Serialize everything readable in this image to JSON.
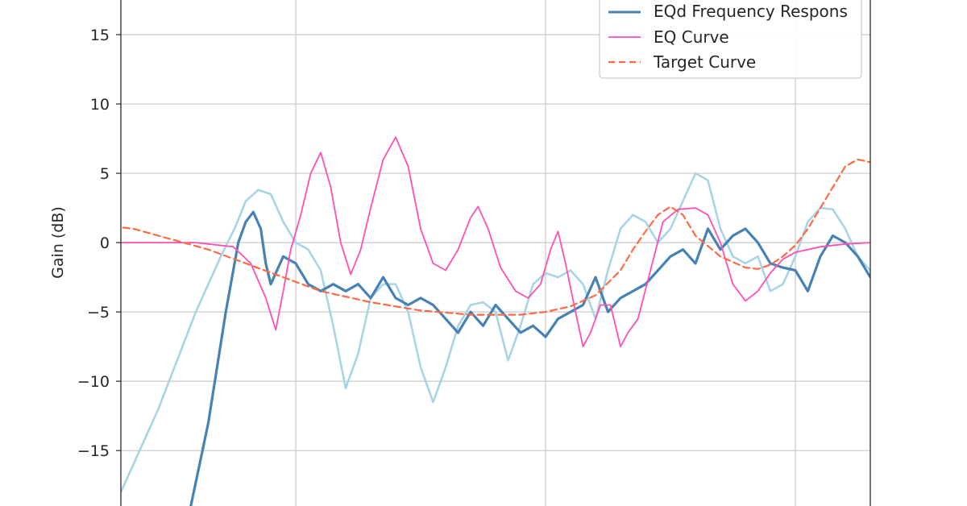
{
  "chart_data": {
    "type": "line",
    "title": "",
    "xlabel": "",
    "ylabel": "Gain (dB)",
    "x_scale": "log",
    "xlim_decades": [
      1.3,
      4.3
    ],
    "ylim": [
      -19,
      17.5
    ],
    "yticks": [
      15,
      10,
      5,
      0,
      -5,
      -10,
      -15
    ],
    "ytick_labels": [
      "15",
      "10",
      "5",
      "0",
      "−5",
      "−10",
      "−15"
    ],
    "grid": true,
    "legend": {
      "placement": "top-right",
      "entries": [
        {
          "label": "EQd Frequency Respons",
          "color": "#4682b4",
          "style": "solid"
        },
        {
          "label": "EQ Curve",
          "color": "#ff4fb6",
          "style": "solid"
        },
        {
          "label": "Target Curve",
          "color": "#ff6a45",
          "style": "dashed"
        }
      ]
    },
    "series": [
      {
        "name": "",
        "color": "#a8d4e6",
        "style": "solid",
        "points": [
          [
            1.0,
            -8
          ],
          [
            1.3,
            -18
          ],
          [
            1.45,
            -12
          ],
          [
            1.6,
            -5
          ],
          [
            1.7,
            -1
          ],
          [
            1.76,
            1.2
          ],
          [
            1.8,
            3
          ],
          [
            1.85,
            3.8
          ],
          [
            1.9,
            3.5
          ],
          [
            1.95,
            1.5
          ],
          [
            2.0,
            0
          ],
          [
            2.05,
            -0.5
          ],
          [
            2.1,
            -2
          ],
          [
            2.15,
            -6
          ],
          [
            2.2,
            -10.5
          ],
          [
            2.25,
            -8
          ],
          [
            2.3,
            -4
          ],
          [
            2.35,
            -3
          ],
          [
            2.4,
            -3
          ],
          [
            2.45,
            -5
          ],
          [
            2.5,
            -9
          ],
          [
            2.55,
            -11.5
          ],
          [
            2.6,
            -9
          ],
          [
            2.65,
            -6
          ],
          [
            2.7,
            -4.5
          ],
          [
            2.75,
            -4.3
          ],
          [
            2.8,
            -5
          ],
          [
            2.85,
            -8.5
          ],
          [
            2.9,
            -6
          ],
          [
            2.95,
            -3
          ],
          [
            3.0,
            -2.2
          ],
          [
            3.05,
            -2.5
          ],
          [
            3.1,
            -2
          ],
          [
            3.15,
            -3
          ],
          [
            3.2,
            -5.5
          ],
          [
            3.25,
            -2
          ],
          [
            3.3,
            1
          ],
          [
            3.35,
            2
          ],
          [
            3.4,
            1.5
          ],
          [
            3.45,
            0
          ],
          [
            3.5,
            1
          ],
          [
            3.55,
            3
          ],
          [
            3.6,
            5
          ],
          [
            3.65,
            4.5
          ],
          [
            3.7,
            1
          ],
          [
            3.75,
            -1
          ],
          [
            3.8,
            -1.5
          ],
          [
            3.85,
            -1
          ],
          [
            3.9,
            -3.5
          ],
          [
            3.95,
            -3
          ],
          [
            4.0,
            -1
          ],
          [
            4.05,
            1.5
          ],
          [
            4.1,
            2.5
          ],
          [
            4.15,
            2.4
          ],
          [
            4.2,
            1
          ],
          [
            4.25,
            -1
          ],
          [
            4.3,
            -2
          ],
          [
            4.35,
            -1.5
          ],
          [
            4.4,
            0
          ],
          [
            4.45,
            1.5
          ],
          [
            4.5,
            2
          ],
          [
            4.55,
            0
          ],
          [
            4.6,
            -2
          ],
          [
            4.65,
            -2.5
          ],
          [
            4.7,
            -3
          ]
        ]
      },
      {
        "name": "EQd Frequency Respons",
        "color": "#4682b4",
        "style": "solid",
        "points": [
          [
            1.58,
            -19
          ],
          [
            1.65,
            -13
          ],
          [
            1.72,
            -5
          ],
          [
            1.77,
            0
          ],
          [
            1.8,
            1.5
          ],
          [
            1.83,
            2.2
          ],
          [
            1.86,
            1
          ],
          [
            1.88,
            -1.5
          ],
          [
            1.9,
            -3
          ],
          [
            1.95,
            -1
          ],
          [
            2.0,
            -1.5
          ],
          [
            2.05,
            -3
          ],
          [
            2.1,
            -3.5
          ],
          [
            2.15,
            -3
          ],
          [
            2.2,
            -3.5
          ],
          [
            2.25,
            -3
          ],
          [
            2.3,
            -4
          ],
          [
            2.35,
            -2.5
          ],
          [
            2.4,
            -4
          ],
          [
            2.45,
            -4.5
          ],
          [
            2.5,
            -4
          ],
          [
            2.55,
            -4.5
          ],
          [
            2.6,
            -5.5
          ],
          [
            2.65,
            -6.5
          ],
          [
            2.7,
            -5
          ],
          [
            2.75,
            -6
          ],
          [
            2.8,
            -4.5
          ],
          [
            2.85,
            -5.5
          ],
          [
            2.9,
            -6.5
          ],
          [
            2.95,
            -6
          ],
          [
            3.0,
            -6.8
          ],
          [
            3.05,
            -5.5
          ],
          [
            3.1,
            -5
          ],
          [
            3.15,
            -4.5
          ],
          [
            3.2,
            -2.5
          ],
          [
            3.25,
            -5
          ],
          [
            3.3,
            -4
          ],
          [
            3.35,
            -3.5
          ],
          [
            3.4,
            -3
          ],
          [
            3.45,
            -2
          ],
          [
            3.5,
            -1
          ],
          [
            3.55,
            -0.5
          ],
          [
            3.6,
            -1.5
          ],
          [
            3.65,
            1
          ],
          [
            3.7,
            -0.5
          ],
          [
            3.75,
            0.5
          ],
          [
            3.8,
            1
          ],
          [
            3.85,
            0
          ],
          [
            3.9,
            -1.5
          ],
          [
            3.95,
            -1.8
          ],
          [
            4.0,
            -2
          ],
          [
            4.05,
            -3.5
          ],
          [
            4.1,
            -1
          ],
          [
            4.15,
            0.5
          ],
          [
            4.2,
            0
          ],
          [
            4.25,
            -1
          ],
          [
            4.3,
            -2.5
          ],
          [
            4.35,
            -1.5
          ],
          [
            4.4,
            1
          ],
          [
            4.45,
            1.5
          ],
          [
            4.5,
            0
          ],
          [
            4.55,
            -1
          ],
          [
            4.6,
            -2.5
          ],
          [
            4.65,
            -2.5
          ],
          [
            4.7,
            -3.5
          ],
          [
            4.75,
            -4
          ],
          [
            4.8,
            -5
          ],
          [
            4.85,
            -8
          ],
          [
            4.9,
            -12
          ],
          [
            4.95,
            -19
          ]
        ]
      },
      {
        "name": "EQ Curve",
        "color": "#ff4fb6",
        "style": "solid",
        "points": [
          [
            1.0,
            0
          ],
          [
            1.6,
            0
          ],
          [
            1.75,
            -0.3
          ],
          [
            1.82,
            -1.5
          ],
          [
            1.88,
            -4
          ],
          [
            1.92,
            -6.3
          ],
          [
            1.95,
            -3.5
          ],
          [
            1.98,
            -0.5
          ],
          [
            2.02,
            2
          ],
          [
            2.06,
            5
          ],
          [
            2.1,
            6.5
          ],
          [
            2.14,
            4
          ],
          [
            2.18,
            0
          ],
          [
            2.22,
            -2.3
          ],
          [
            2.26,
            -0.5
          ],
          [
            2.3,
            2.5
          ],
          [
            2.35,
            6
          ],
          [
            2.4,
            7.6
          ],
          [
            2.45,
            5.5
          ],
          [
            2.5,
            1
          ],
          [
            2.55,
            -1.5
          ],
          [
            2.6,
            -2
          ],
          [
            2.65,
            -0.5
          ],
          [
            2.7,
            1.8
          ],
          [
            2.73,
            2.6
          ],
          [
            2.77,
            1
          ],
          [
            2.82,
            -1.8
          ],
          [
            2.88,
            -3.5
          ],
          [
            2.93,
            -4
          ],
          [
            2.98,
            -3
          ],
          [
            3.02,
            -0.5
          ],
          [
            3.05,
            0.8
          ],
          [
            3.08,
            -1.5
          ],
          [
            3.12,
            -5
          ],
          [
            3.15,
            -7.5
          ],
          [
            3.18,
            -6.5
          ],
          [
            3.22,
            -4.5
          ],
          [
            3.26,
            -4.5
          ],
          [
            3.3,
            -7.5
          ],
          [
            3.33,
            -6.5
          ],
          [
            3.37,
            -5.5
          ],
          [
            3.42,
            -2
          ],
          [
            3.47,
            1.5
          ],
          [
            3.53,
            2.4
          ],
          [
            3.6,
            2.5
          ],
          [
            3.65,
            2
          ],
          [
            3.7,
            0
          ],
          [
            3.75,
            -3
          ],
          [
            3.8,
            -4.2
          ],
          [
            3.85,
            -3.5
          ],
          [
            3.9,
            -2.2
          ],
          [
            3.95,
            -1.2
          ],
          [
            4.0,
            -0.7
          ],
          [
            4.1,
            -0.3
          ],
          [
            4.2,
            -0.1
          ],
          [
            4.3,
            0
          ],
          [
            5.0,
            0
          ]
        ]
      },
      {
        "name": "Target Curve",
        "color": "#ff6a45",
        "style": "dashed",
        "points": [
          [
            1.0,
            -4
          ],
          [
            1.05,
            -2
          ],
          [
            1.1,
            -0.5
          ],
          [
            1.15,
            0.5
          ],
          [
            1.2,
            1
          ],
          [
            1.25,
            1.2
          ],
          [
            1.3,
            1.1
          ],
          [
            1.35,
            1
          ],
          [
            1.45,
            0.5
          ],
          [
            1.55,
            0
          ],
          [
            1.65,
            -0.5
          ],
          [
            1.8,
            -1.5
          ],
          [
            1.95,
            -2.5
          ],
          [
            2.1,
            -3.5
          ],
          [
            2.3,
            -4.3
          ],
          [
            2.5,
            -4.9
          ],
          [
            2.7,
            -5.2
          ],
          [
            2.9,
            -5.2
          ],
          [
            3.0,
            -5
          ],
          [
            3.1,
            -4.6
          ],
          [
            3.2,
            -3.8
          ],
          [
            3.3,
            -2
          ],
          [
            3.35,
            -0.5
          ],
          [
            3.4,
            0.8
          ],
          [
            3.45,
            2
          ],
          [
            3.5,
            2.6
          ],
          [
            3.55,
            2
          ],
          [
            3.6,
            0.5
          ],
          [
            3.7,
            -1
          ],
          [
            3.8,
            -1.8
          ],
          [
            3.85,
            -1.9
          ],
          [
            3.9,
            -1.6
          ],
          [
            3.95,
            -1
          ],
          [
            4.0,
            -0.2
          ],
          [
            4.05,
            1
          ],
          [
            4.1,
            2.5
          ],
          [
            4.15,
            4
          ],
          [
            4.2,
            5.5
          ],
          [
            4.25,
            6
          ],
          [
            4.3,
            5.8
          ],
          [
            4.33,
            4.5
          ],
          [
            4.38,
            0.5
          ],
          [
            4.42,
            -5
          ],
          [
            4.45,
            -11
          ],
          [
            4.48,
            -17
          ],
          [
            4.5,
            -19
          ]
        ]
      }
    ]
  }
}
